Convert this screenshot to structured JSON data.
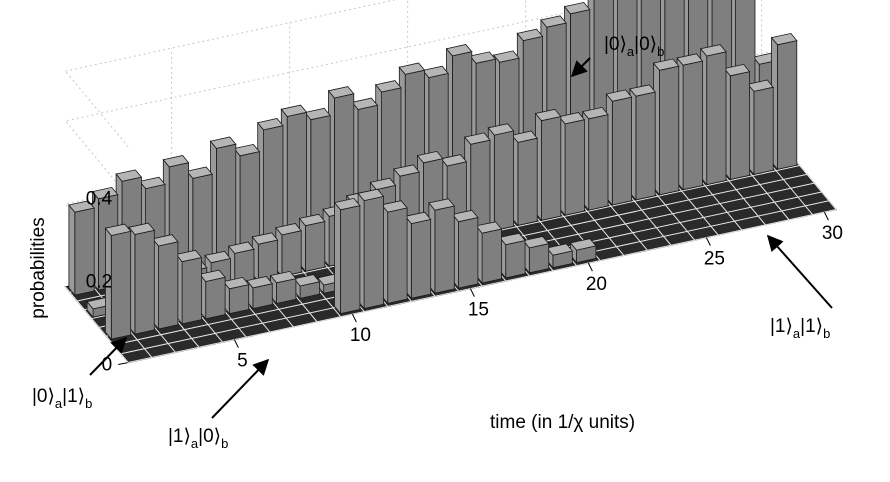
{
  "chart_data": {
    "type": "bar3d",
    "title": "",
    "xlabel": "time (in 1/χ units)",
    "ylabel": "",
    "zlabel": "probabilities",
    "x_ticks": [
      "5",
      "10",
      "15",
      "20",
      "25",
      "30"
    ],
    "z_ticks": [
      "0",
      "0.2",
      "0.4"
    ],
    "xlim": [
      1,
      30
    ],
    "zlim": [
      0,
      0.4
    ],
    "grid": true,
    "series": [
      {
        "name": "|1⟩a|0⟩b",
        "label_parts": [
          "|1⟩",
          "a",
          "|0⟩",
          "b"
        ],
        "values": [
          0,
          0,
          0,
          0,
          0,
          0,
          0,
          0,
          0,
          0.25,
          0.26,
          0.22,
          0.18,
          0.2,
          0.16,
          0.12,
          0.08,
          0.06,
          0.03,
          0.03,
          0,
          0,
          0,
          0,
          0,
          0,
          0,
          0,
          0,
          0
        ]
      },
      {
        "name": "|0⟩a|1⟩b",
        "label_parts": [
          "|0⟩",
          "a",
          "|1⟩",
          "b"
        ],
        "values": [
          0.25,
          0.24,
          0.2,
          0.15,
          0.09,
          0.06,
          0.05,
          0.05,
          0.03,
          0.02,
          0.01,
          0,
          0,
          0,
          0,
          0,
          0,
          0,
          0,
          0,
          0,
          0,
          0,
          0,
          0,
          0,
          0,
          0,
          0,
          0
        ]
      },
      {
        "name": "|1⟩a|1⟩b",
        "label_parts": [
          "|1⟩",
          "a",
          "|1⟩",
          "b"
        ],
        "values": [
          0.02,
          0.03,
          0.04,
          0.05,
          0.06,
          0.07,
          0.08,
          0.09,
          0.1,
          0.11,
          0.12,
          0.14,
          0.16,
          0.18,
          0.2,
          0.18,
          0.22,
          0.23,
          0.2,
          0.24,
          0.22,
          0.22,
          0.25,
          0.25,
          0.3,
          0.3,
          0.31,
          0.25,
          0.2,
          0.3
        ]
      },
      {
        "name": "|0⟩a|0⟩b",
        "label_parts": [
          "|0⟩",
          "a",
          "|0⟩",
          "b"
        ],
        "values": [
          0.2,
          0.22,
          0.25,
          0.22,
          0.26,
          0.22,
          0.28,
          0.25,
          0.3,
          0.32,
          0.3,
          0.34,
          0.3,
          0.33,
          0.36,
          0.34,
          0.38,
          0.35,
          0.34,
          0.38,
          0.4,
          0.42,
          0.46,
          0.48,
          0.46,
          0.45,
          0.43,
          0.4,
          0.38,
          0.2
        ]
      }
    ]
  }
}
